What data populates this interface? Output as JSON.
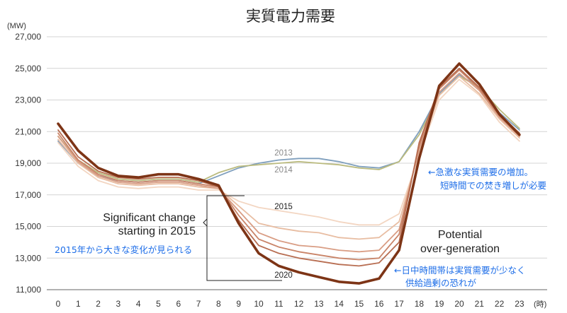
{
  "chart_data": {
    "type": "line",
    "title": "実質電力需要",
    "y_unit": "(MW)",
    "x_unit": "(時)",
    "ylim": [
      11000,
      27000
    ],
    "yticks": [
      11000,
      13000,
      15000,
      17000,
      19000,
      21000,
      23000,
      25000,
      27000
    ],
    "ytick_labels": [
      "11,000",
      "13,000",
      "15,000",
      "17,000",
      "19,000",
      "21,000",
      "23,000",
      "25,000",
      "27,000"
    ],
    "x": [
      0,
      1,
      2,
      3,
      4,
      5,
      6,
      7,
      8,
      9,
      10,
      11,
      12,
      13,
      14,
      15,
      16,
      17,
      18,
      19,
      20,
      21,
      22,
      23
    ],
    "x_labels": [
      "0",
      "1",
      "2",
      "3",
      "4",
      "5",
      "6",
      "7",
      "8",
      "9",
      "10",
      "11",
      "12",
      "13",
      "14",
      "15",
      "16",
      "17",
      "18",
      "19",
      "20",
      "21",
      "22",
      "23"
    ],
    "grid": true,
    "series": [
      {
        "name": "2013",
        "color": "#7f9fbd",
        "width": 1.8,
        "values": [
          20400,
          19000,
          18200,
          17900,
          17800,
          17900,
          17900,
          17700,
          18200,
          18700,
          19000,
          19200,
          19300,
          19300,
          19100,
          18800,
          18700,
          19100,
          21000,
          23400,
          24600,
          23800,
          22200,
          21100
        ]
      },
      {
        "name": "2014",
        "color": "#bbbb7f",
        "width": 1.8,
        "values": [
          20700,
          19200,
          18400,
          18000,
          17900,
          18000,
          18000,
          17800,
          18400,
          18800,
          18900,
          19000,
          19100,
          19000,
          18900,
          18700,
          18600,
          19100,
          20800,
          23300,
          24500,
          23800,
          22400,
          21200
        ]
      },
      {
        "name": "2015",
        "color": "#f3d6c2",
        "width": 1.8,
        "values": [
          20300,
          18800,
          17900,
          17500,
          17400,
          17500,
          17500,
          17300,
          17300,
          16600,
          16200,
          16000,
          15800,
          15600,
          15300,
          15100,
          15100,
          15800,
          19500,
          23000,
          24300,
          23300,
          21600,
          20400
        ]
      },
      {
        "name": "",
        "color": "#e8bda2",
        "width": 1.8,
        "values": [
          20500,
          19000,
          18100,
          17700,
          17600,
          17700,
          17700,
          17500,
          17400,
          16300,
          15200,
          14900,
          14700,
          14600,
          14300,
          14200,
          14300,
          15300,
          19700,
          23300,
          24500,
          23400,
          21800,
          20600
        ]
      },
      {
        "name": "",
        "color": "#d99d84",
        "width": 1.8,
        "values": [
          20700,
          19100,
          18200,
          17800,
          17700,
          17800,
          17800,
          17600,
          17400,
          16000,
          14600,
          14100,
          13800,
          13700,
          13500,
          13400,
          13500,
          14800,
          19900,
          23500,
          24700,
          23600,
          21900,
          20700
        ]
      },
      {
        "name": "",
        "color": "#c98468",
        "width": 1.8,
        "values": [
          20900,
          19200,
          18300,
          17900,
          17800,
          17900,
          17900,
          17700,
          17500,
          15700,
          14200,
          13700,
          13400,
          13200,
          13000,
          12900,
          13000,
          14500,
          20100,
          23700,
          24900,
          23700,
          22000,
          20800
        ]
      },
      {
        "name": "",
        "color": "#b86e52",
        "width": 1.8,
        "values": [
          21100,
          19400,
          18500,
          18100,
          18000,
          18100,
          18100,
          17900,
          17500,
          15400,
          13800,
          13300,
          13000,
          12800,
          12600,
          12500,
          12700,
          14000,
          20300,
          23800,
          25000,
          23800,
          22100,
          20900
        ]
      },
      {
        "name": "2020",
        "color": "#7d3416",
        "width": 3.6,
        "values": [
          21500,
          19800,
          18700,
          18200,
          18100,
          18300,
          18300,
          18000,
          17600,
          15200,
          13300,
          12500,
          12100,
          11800,
          11500,
          11400,
          11700,
          13500,
          19300,
          23900,
          25300,
          24000,
          22100,
          20800
        ]
      }
    ],
    "annotations": {
      "significant_line1": "Significant change",
      "significant_line2": "starting in 2015",
      "potential_line1": "Potential",
      "potential_line2": "over-generation",
      "jp_change": "2015年から大きな変化が見られる",
      "jp_increase_line1": "←急激な実質需要の増加。",
      "jp_increase_line2": "短時間での焚き増しが必要",
      "jp_daytime_line1": "←日中時間帯は実質需要が少なく",
      "jp_daytime_line2": "供給過剰の恐れが"
    }
  }
}
